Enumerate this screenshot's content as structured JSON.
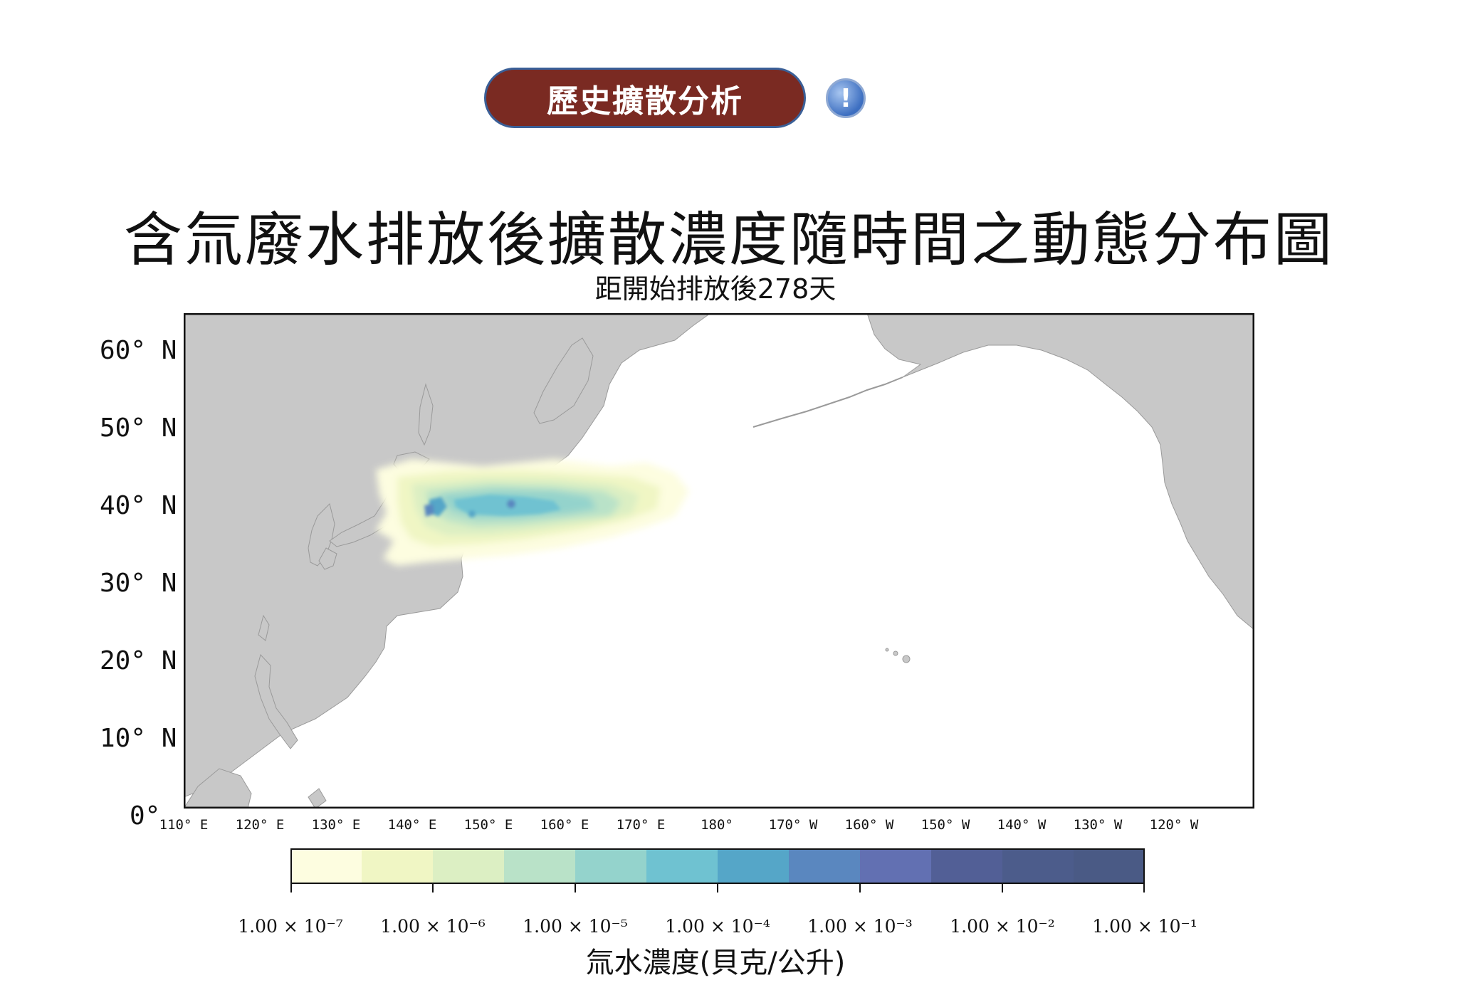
{
  "header": {
    "button_label": "歷史擴散分析",
    "info_icon_glyph": "!"
  },
  "title": "含氚廢水排放後擴散濃度隨時間之動態分布圖",
  "subtitle": "距開始排放後278天",
  "map": {
    "lat_labels": [
      "60° N",
      "50° N",
      "40° N",
      "30° N",
      "20° N",
      "10° N",
      "0°"
    ],
    "lon_labels": [
      "110° E",
      "120° E",
      "130° E",
      "140° E",
      "150° E",
      "160° E",
      "170° E",
      "180°",
      "170° W",
      "160° W",
      "150° W",
      "140° W",
      "130° W",
      "120° W"
    ],
    "land_color": "#c8c8c8",
    "ocean_color": "#ffffff"
  },
  "colorbar": {
    "colors": [
      "#fdfde0",
      "#f0f6c4",
      "#dcefc3",
      "#b9e2c8",
      "#94d3cc",
      "#6fc2d1",
      "#55a6c8",
      "#5a87bf",
      "#6270b2",
      "#525f96",
      "#4c5c8b",
      "#4a5a85"
    ],
    "tick_labels": [
      "1.00 × 10⁻⁷",
      "1.00 × 10⁻⁶",
      "1.00 × 10⁻⁵",
      "1.00 × 10⁻⁴",
      "1.00 × 10⁻³",
      "1.00 × 10⁻²",
      "1.00 × 10⁻¹"
    ],
    "label": "氚水濃度(貝克/公升)"
  }
}
